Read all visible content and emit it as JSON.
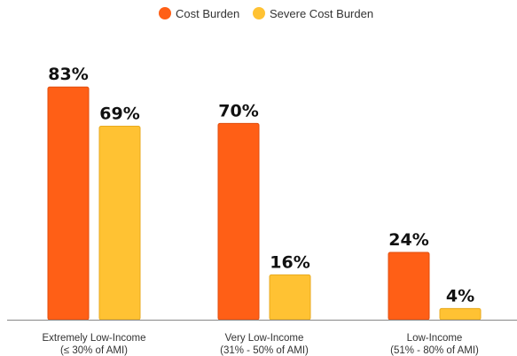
{
  "colors": {
    "cost_burden": "#FF5F16",
    "severe_cost_burden": "#FFC233",
    "bar_stroke": "#E04E0E",
    "severe_bar_stroke": "#E8AA1F",
    "axis": "#888888"
  },
  "chart_data": {
    "type": "bar",
    "categories": [
      [
        "Extremely Low-Income",
        "(≤ 30% of AMI)"
      ],
      [
        "Very Low-Income",
        "(31% - 50% of AMI)"
      ],
      [
        "Low-Income",
        "(51% - 80% of AMI)"
      ]
    ],
    "series": [
      {
        "name": "Cost Burden",
        "values": [
          83,
          70,
          24
        ],
        "labels": [
          "83%",
          "70%",
          "24%"
        ]
      },
      {
        "name": "Severe Cost Burden",
        "values": [
          69,
          16,
          4
        ],
        "labels": [
          "69%",
          "16%",
          "4%"
        ]
      }
    ],
    "ylim": [
      0,
      100
    ],
    "grid": false,
    "legend": "top-center",
    "title": "",
    "xlabel": "",
    "ylabel": ""
  }
}
